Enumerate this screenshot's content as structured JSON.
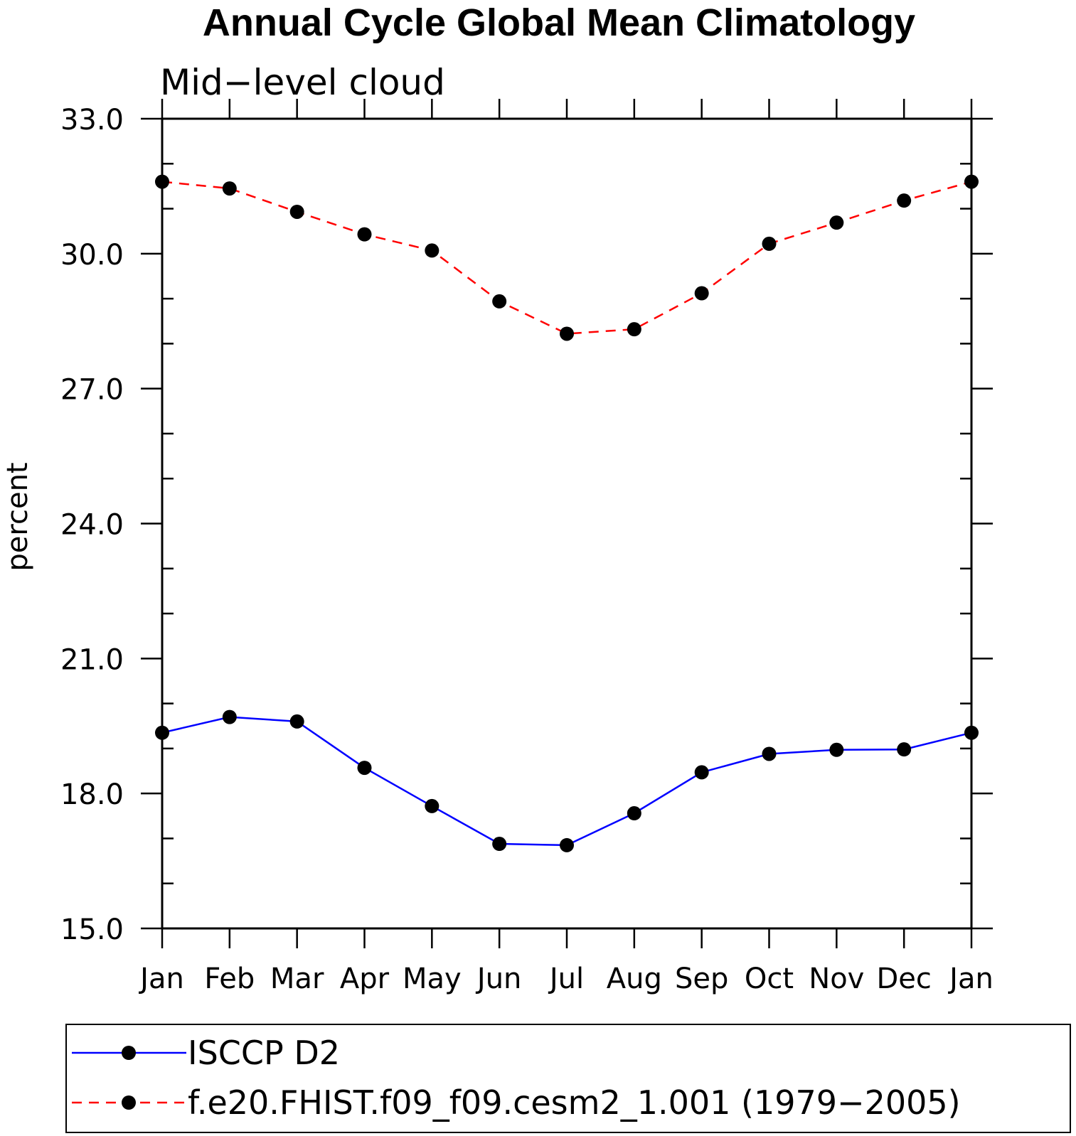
{
  "chart_data": {
    "type": "line",
    "title": "Annual Cycle Global Mean Climatology",
    "subtitle": "Mid−level cloud",
    "xlabel": "",
    "ylabel": "percent",
    "categories": [
      "Jan",
      "Feb",
      "Mar",
      "Apr",
      "May",
      "Jun",
      "Jul",
      "Aug",
      "Sep",
      "Oct",
      "Nov",
      "Dec",
      "Jan"
    ],
    "ylim": [
      15.0,
      33.0
    ],
    "yticks": [
      "15.0",
      "18.0",
      "21.0",
      "24.0",
      "27.0",
      "30.0",
      "33.0"
    ],
    "grid": false,
    "legend_position": "bottom",
    "series": [
      {
        "name": "ISCCP D2",
        "color": "#0000ff",
        "line_style": "solid",
        "marker": "filled-circle",
        "values": [
          19.35,
          19.7,
          19.6,
          18.57,
          17.72,
          16.88,
          16.85,
          17.56,
          18.47,
          18.88,
          18.97,
          18.98,
          19.35
        ]
      },
      {
        "name": "f.e20.FHIST.f09_f09.cesm2_1.001 (1979−2005)",
        "color": "#ff0000",
        "line_style": "dashed",
        "marker": "filled-circle",
        "values": [
          31.6,
          31.45,
          30.93,
          30.43,
          30.07,
          28.94,
          28.22,
          28.32,
          29.12,
          30.22,
          30.69,
          31.18,
          31.6
        ]
      }
    ]
  }
}
